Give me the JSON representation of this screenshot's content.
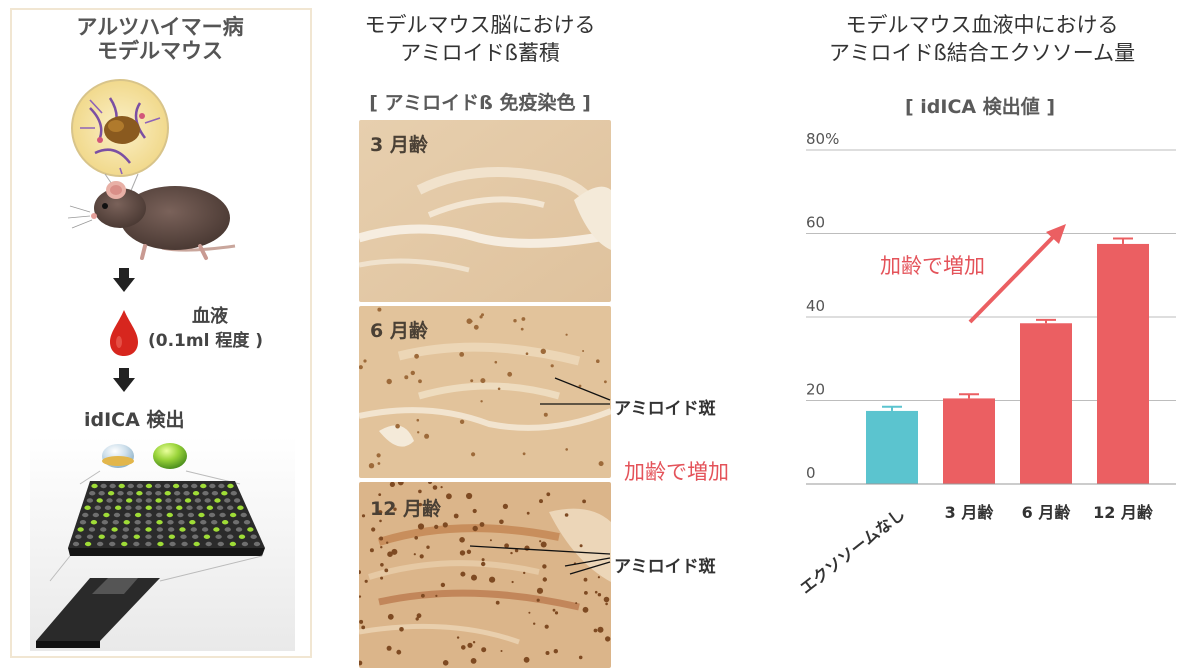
{
  "left": {
    "title_line1": "アルツハイマー病",
    "title_line2": "モデルマウス",
    "blood_label": "血液",
    "blood_amount": "(0.1ml 程度 )",
    "detect_label": "idICA 検出"
  },
  "middle": {
    "title_line1": "モデルマウス脳における",
    "title_line2": "アミロイドß蓄積",
    "subtitle": "[ アミロイドß 免疫染色 ]",
    "panels": [
      {
        "label": "3 月齢"
      },
      {
        "label": "6 月齢"
      },
      {
        "label": "12 月齢"
      }
    ],
    "callout_label": "アミロイド斑",
    "increase_label": "加齢で増加"
  },
  "right": {
    "title_line1": "モデルマウス血液中における",
    "title_line2": "アミロイドß結合エクソソーム量",
    "subtitle": "[ idICA 検出値 ]",
    "increase_label": "加齢で増加"
  },
  "colors": {
    "teal": "#5bc4cf",
    "red": "#eb5f62",
    "accent_text": "#e4535a"
  },
  "chart_data": {
    "type": "bar",
    "categories": [
      "エクソソームなし",
      "3 月齢",
      "6 月齢",
      "12 月齢"
    ],
    "values": [
      17.5,
      20.5,
      38.5,
      57.5
    ],
    "errors": [
      1.0,
      1.0,
      0.8,
      1.3
    ],
    "yticks": [
      "80%",
      "60",
      "40",
      "20",
      "0"
    ],
    "ylim": [
      0,
      80
    ],
    "title": "[ idICA 検出値 ]",
    "xlabel": "",
    "ylabel": "",
    "grid": true,
    "bar_colors": [
      "#5bc4cf",
      "#eb5f62",
      "#eb5f62",
      "#eb5f62"
    ]
  }
}
